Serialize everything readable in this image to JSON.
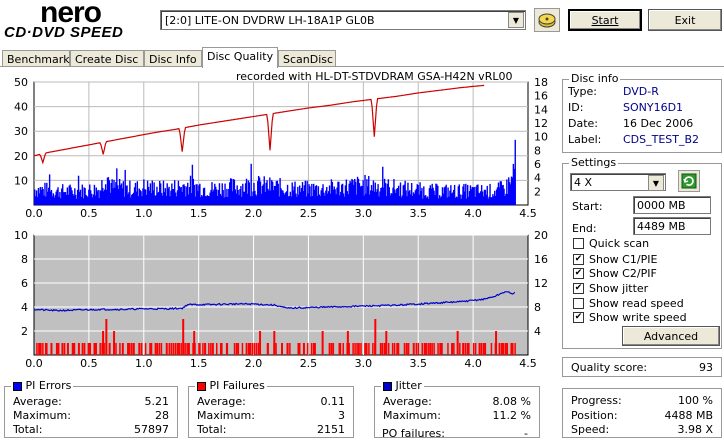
{
  "logo": {
    "brand": "nero",
    "product": "CD·DVD SPEED"
  },
  "header": {
    "drive": "[2:0]  LITE-ON DVDRW LH-18A1P GL0B",
    "start_label": "Start",
    "exit_label": "Exit"
  },
  "tabs": [
    "Benchmark",
    "Create Disc",
    "Disc Info",
    "Disc Quality",
    "ScanDisc"
  ],
  "active_tab": "Disc Quality",
  "recorded_with": "recorded with HL-DT-STDVDRAM GSA-H42N  vRL00",
  "disc_info": {
    "title": "Disc info",
    "type_label": "Type:",
    "type": "DVD-R",
    "id_label": "ID:",
    "id": "SONY16D1",
    "date_label": "Date:",
    "date": "16 Dec 2006",
    "label_label": "Label:",
    "label": "CDS_TEST_B2"
  },
  "settings": {
    "title": "Settings",
    "speed": "4 X",
    "start_label": "Start:",
    "start": "0000 MB",
    "end_label": "End:",
    "end": "4489 MB",
    "quick_scan": "Quick scan",
    "show_c1": "Show C1/PIE",
    "show_c2": "Show C2/PIF",
    "show_jitter": "Show jitter",
    "show_read": "Show read speed",
    "show_write": "Show write speed",
    "advanced": "Advanced"
  },
  "checkboxes": {
    "quick_scan": false,
    "show_c1": true,
    "show_c2": true,
    "show_jitter": true,
    "show_read": false,
    "show_write": true
  },
  "quality": {
    "label": "Quality score:",
    "value": "93"
  },
  "progress": {
    "progress_label": "Progress:",
    "progress": "100 %",
    "position_label": "Position:",
    "position": "4488 MB",
    "speed_label": "Speed:",
    "speed": "3.98 X"
  },
  "pi_errors": {
    "title": "PI Errors",
    "avg_label": "Average:",
    "avg": "5.21",
    "max_label": "Maximum:",
    "max": "28",
    "total_label": "Total:",
    "total": "57897"
  },
  "pi_failures": {
    "title": "PI Failures",
    "avg_label": "Average:",
    "avg": "0.11",
    "max_label": "Maximum:",
    "max": "3",
    "total_label": "Total:",
    "total": "2151"
  },
  "jitter": {
    "title": "Jitter",
    "avg_label": "Average:",
    "avg": "8.08 %",
    "max_label": "Maximum:",
    "max": "11.2 %",
    "po_label": "PO failures:",
    "po": "-"
  },
  "colors": {
    "pie": "#0000ff",
    "pif": "#ff0000",
    "write_speed": "#cc0000",
    "jitter": "#0000cc",
    "plot_bg_bottom": "#c0c0c0"
  },
  "chart_data": [
    {
      "type": "bar",
      "name": "PI Errors / Write speed",
      "x_ticks": [
        "0.0",
        "0.5",
        "1.0",
        "1.5",
        "2.0",
        "2.5",
        "3.0",
        "3.5",
        "4.0",
        "4.5"
      ],
      "y_left_ticks": [
        "50",
        "40",
        "30",
        "20",
        "10"
      ],
      "y_right_ticks": [
        "18",
        "16",
        "14",
        "12",
        "10",
        "8",
        "6",
        "4",
        "2"
      ],
      "xlim": [
        0,
        4.5
      ],
      "ylim_left": [
        0,
        50
      ],
      "ylim_right": [
        0,
        18
      ],
      "pie_profile": [
        [
          0,
          8
        ],
        [
          0.2,
          7
        ],
        [
          0.4,
          7
        ],
        [
          0.6,
          8
        ],
        [
          0.65,
          17
        ],
        [
          0.7,
          9
        ],
        [
          0.9,
          8
        ],
        [
          1.0,
          9
        ],
        [
          1.2,
          8
        ],
        [
          1.4,
          10
        ],
        [
          1.6,
          8
        ],
        [
          1.8,
          9
        ],
        [
          2.0,
          10
        ],
        [
          2.2,
          9
        ],
        [
          2.4,
          8
        ],
        [
          2.6,
          8
        ],
        [
          2.8,
          9
        ],
        [
          3.0,
          10
        ],
        [
          3.2,
          9
        ],
        [
          3.4,
          8
        ],
        [
          3.6,
          7
        ],
        [
          3.8,
          7
        ],
        [
          4.0,
          7
        ],
        [
          4.2,
          7
        ],
        [
          4.3,
          9
        ],
        [
          4.35,
          14
        ],
        [
          4.38,
          28
        ]
      ],
      "write_speed": [
        [
          0,
          7.2
        ],
        [
          0.1,
          7.6
        ],
        [
          0.3,
          8.2
        ],
        [
          0.5,
          8.8
        ],
        [
          0.7,
          9.4
        ],
        [
          0.9,
          10.0
        ],
        [
          1.1,
          10.6
        ],
        [
          1.3,
          11.1
        ],
        [
          1.5,
          11.7
        ],
        [
          1.7,
          12.2
        ],
        [
          1.9,
          12.7
        ],
        [
          2.1,
          13.2
        ],
        [
          2.3,
          13.7
        ],
        [
          2.5,
          14.2
        ],
        [
          2.7,
          14.6
        ],
        [
          2.9,
          15.1
        ],
        [
          3.1,
          15.5
        ],
        [
          3.3,
          15.9
        ],
        [
          3.5,
          16.4
        ],
        [
          3.7,
          16.8
        ],
        [
          3.9,
          17.2
        ],
        [
          4.1,
          17.5
        ]
      ],
      "write_dips": [
        [
          0.08,
          6.2
        ],
        [
          0.63,
          7.4
        ],
        [
          1.35,
          7.8
        ],
        [
          2.15,
          8.0
        ],
        [
          3.1,
          10.0
        ]
      ]
    },
    {
      "type": "bar",
      "name": "PI Failures / Jitter",
      "x_ticks": [
        "0.0",
        "0.5",
        "1.0",
        "1.5",
        "2.0",
        "2.5",
        "3.0",
        "3.5",
        "4.0",
        "4.5"
      ],
      "y_left_ticks": [
        "10",
        "8",
        "6",
        "4",
        "2"
      ],
      "y_right_ticks": [
        "20",
        "16",
        "12",
        "8",
        "4"
      ],
      "xlim": [
        0,
        4.5
      ],
      "ylim_left": [
        0,
        10
      ],
      "ylim_right": [
        0,
        20
      ],
      "pif_bars": [
        [
          0.05,
          1
        ],
        [
          0.1,
          1
        ],
        [
          0.15,
          1
        ],
        [
          0.2,
          1
        ],
        [
          0.25,
          1
        ],
        [
          0.3,
          1
        ],
        [
          0.35,
          1
        ],
        [
          0.4,
          1
        ],
        [
          0.45,
          1
        ],
        [
          0.5,
          1
        ],
        [
          0.55,
          1
        ],
        [
          0.62,
          2
        ],
        [
          0.65,
          3
        ],
        [
          0.68,
          1
        ],
        [
          0.72,
          2
        ],
        [
          0.8,
          1
        ],
        [
          0.85,
          1
        ],
        [
          0.9,
          1
        ],
        [
          0.95,
          1
        ],
        [
          1.05,
          1
        ],
        [
          1.1,
          1
        ],
        [
          1.2,
          1
        ],
        [
          1.3,
          1
        ],
        [
          1.35,
          3
        ],
        [
          1.4,
          1
        ],
        [
          1.45,
          2
        ],
        [
          1.5,
          1
        ],
        [
          1.55,
          1
        ],
        [
          1.62,
          1
        ],
        [
          1.7,
          1
        ],
        [
          1.75,
          1
        ],
        [
          1.85,
          1
        ],
        [
          1.95,
          1
        ],
        [
          2.05,
          2
        ],
        [
          2.12,
          1
        ],
        [
          2.18,
          2
        ],
        [
          2.25,
          1
        ],
        [
          2.3,
          1
        ],
        [
          2.4,
          1
        ],
        [
          2.45,
          1
        ],
        [
          2.55,
          1
        ],
        [
          2.62,
          2
        ],
        [
          2.7,
          1
        ],
        [
          2.78,
          1
        ],
        [
          2.85,
          2
        ],
        [
          2.95,
          1
        ],
        [
          3.02,
          1
        ],
        [
          3.1,
          3
        ],
        [
          3.15,
          1
        ],
        [
          3.2,
          2
        ],
        [
          3.3,
          1
        ],
        [
          3.4,
          1
        ],
        [
          3.45,
          1
        ],
        [
          3.55,
          1
        ],
        [
          3.6,
          1
        ],
        [
          3.7,
          1
        ],
        [
          3.8,
          1
        ],
        [
          3.85,
          2
        ],
        [
          3.9,
          1
        ],
        [
          3.95,
          1
        ],
        [
          4.05,
          1
        ],
        [
          4.1,
          1
        ],
        [
          4.2,
          2
        ],
        [
          4.25,
          1
        ],
        [
          4.3,
          1
        ],
        [
          4.35,
          1
        ]
      ],
      "jitter": [
        [
          0,
          7.6
        ],
        [
          0.2,
          7.4
        ],
        [
          0.4,
          7.5
        ],
        [
          0.6,
          7.6
        ],
        [
          0.8,
          7.6
        ],
        [
          1.0,
          7.7
        ],
        [
          1.2,
          7.7
        ],
        [
          1.35,
          7.8
        ],
        [
          1.4,
          8.4
        ],
        [
          1.6,
          8.4
        ],
        [
          1.8,
          8.5
        ],
        [
          2.0,
          8.5
        ],
        [
          2.2,
          8.3
        ],
        [
          2.3,
          7.8
        ],
        [
          2.5,
          7.9
        ],
        [
          2.7,
          8.0
        ],
        [
          2.9,
          8.1
        ],
        [
          3.1,
          8.2
        ],
        [
          3.3,
          8.3
        ],
        [
          3.5,
          8.5
        ],
        [
          3.7,
          8.7
        ],
        [
          3.9,
          8.9
        ],
        [
          4.1,
          9.3
        ],
        [
          4.2,
          9.8
        ],
        [
          4.3,
          10.6
        ],
        [
          4.35,
          10.2
        ],
        [
          4.38,
          10.4
        ]
      ]
    }
  ]
}
